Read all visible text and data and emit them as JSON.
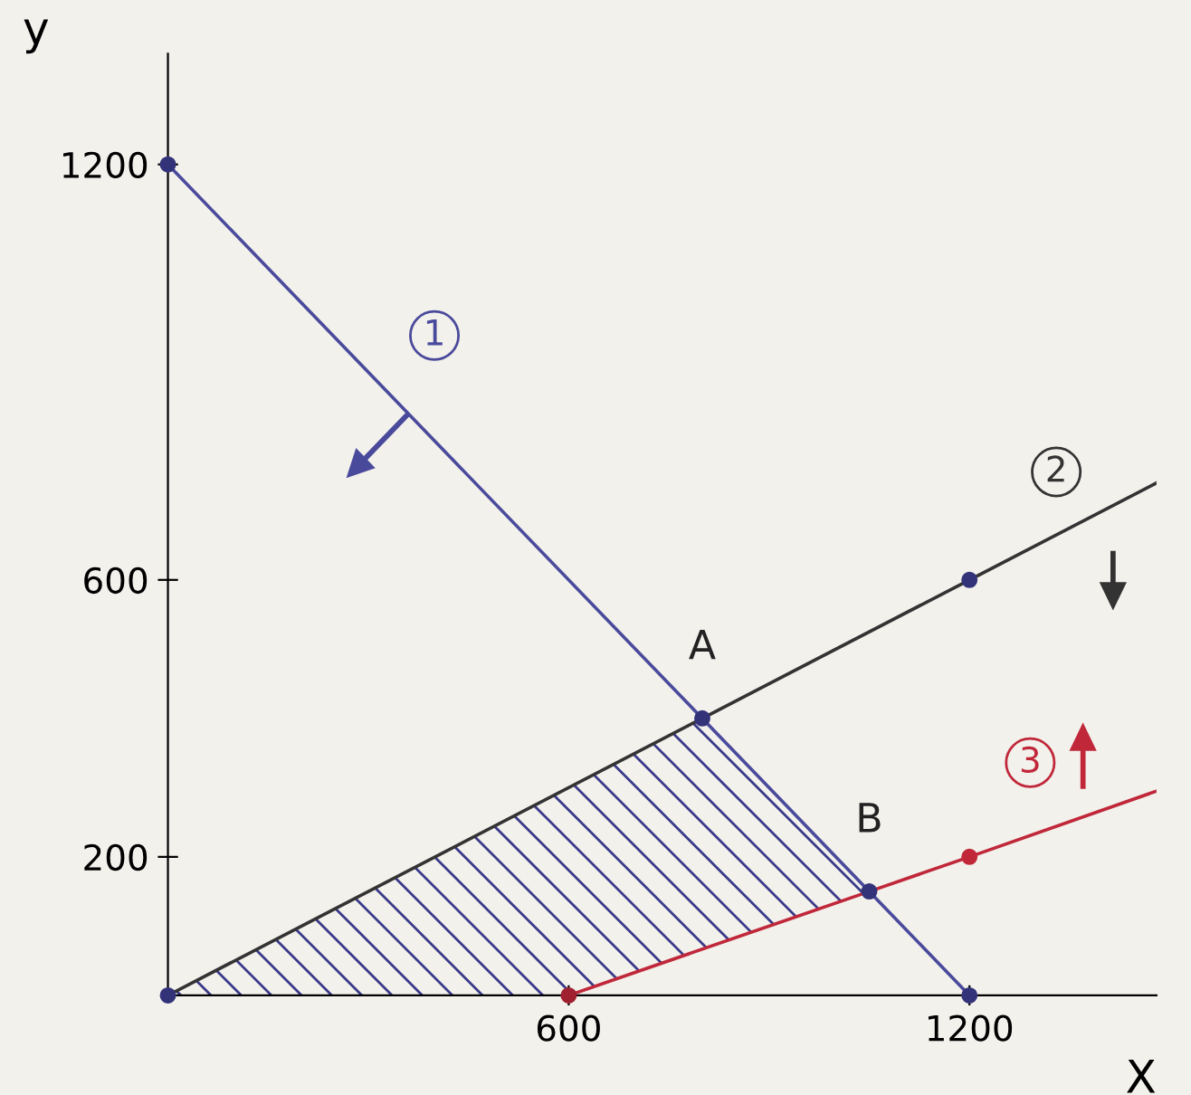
{
  "chart_data": {
    "type": "line",
    "xlabel": "X",
    "ylabel": "y",
    "xlim": [
      0,
      1480
    ],
    "ylim": [
      0,
      1360
    ],
    "xticks": [
      600,
      1200
    ],
    "yticks": [
      200,
      600,
      1200
    ],
    "grid": false,
    "legend": false,
    "line_style": "solid",
    "series": [
      {
        "color": "#4a4a9c",
        "x": [
          0,
          1200
        ],
        "values": [
          1200,
          0
        ]
      },
      {
        "color": "#333333",
        "x": [
          0,
          800,
          1200,
          1480
        ],
        "values": [
          0,
          400,
          600,
          740
        ]
      },
      {
        "color": "#c0283a",
        "x": [
          600,
          1050,
          1200,
          1480
        ],
        "values": [
          0,
          150,
          200,
          295
        ]
      },
      {
        "type": "scatter",
        "marker": "circle",
        "x": [
          0,
          0,
          600,
          1200,
          800,
          1050,
          1200,
          1200
        ],
        "values": [
          1200,
          0,
          0,
          0,
          400,
          150,
          600,
          200
        ],
        "colors": [
          "#33337a",
          "#33337a",
          "#a02030",
          "#33337a",
          "#33337a",
          "#33337a",
          "#33337a",
          "#c0283a"
        ]
      }
    ],
    "annotations": [
      {
        "text": "1",
        "x": 399,
        "y": 953
      },
      {
        "text": "2",
        "x": 1330,
        "y": 756
      },
      {
        "text": "3",
        "x": 1291,
        "y": 336
      },
      {
        "text": "A",
        "x": 800,
        "y": 400
      },
      {
        "text": "B",
        "x": 1050,
        "y": 150
      }
    ]
  }
}
